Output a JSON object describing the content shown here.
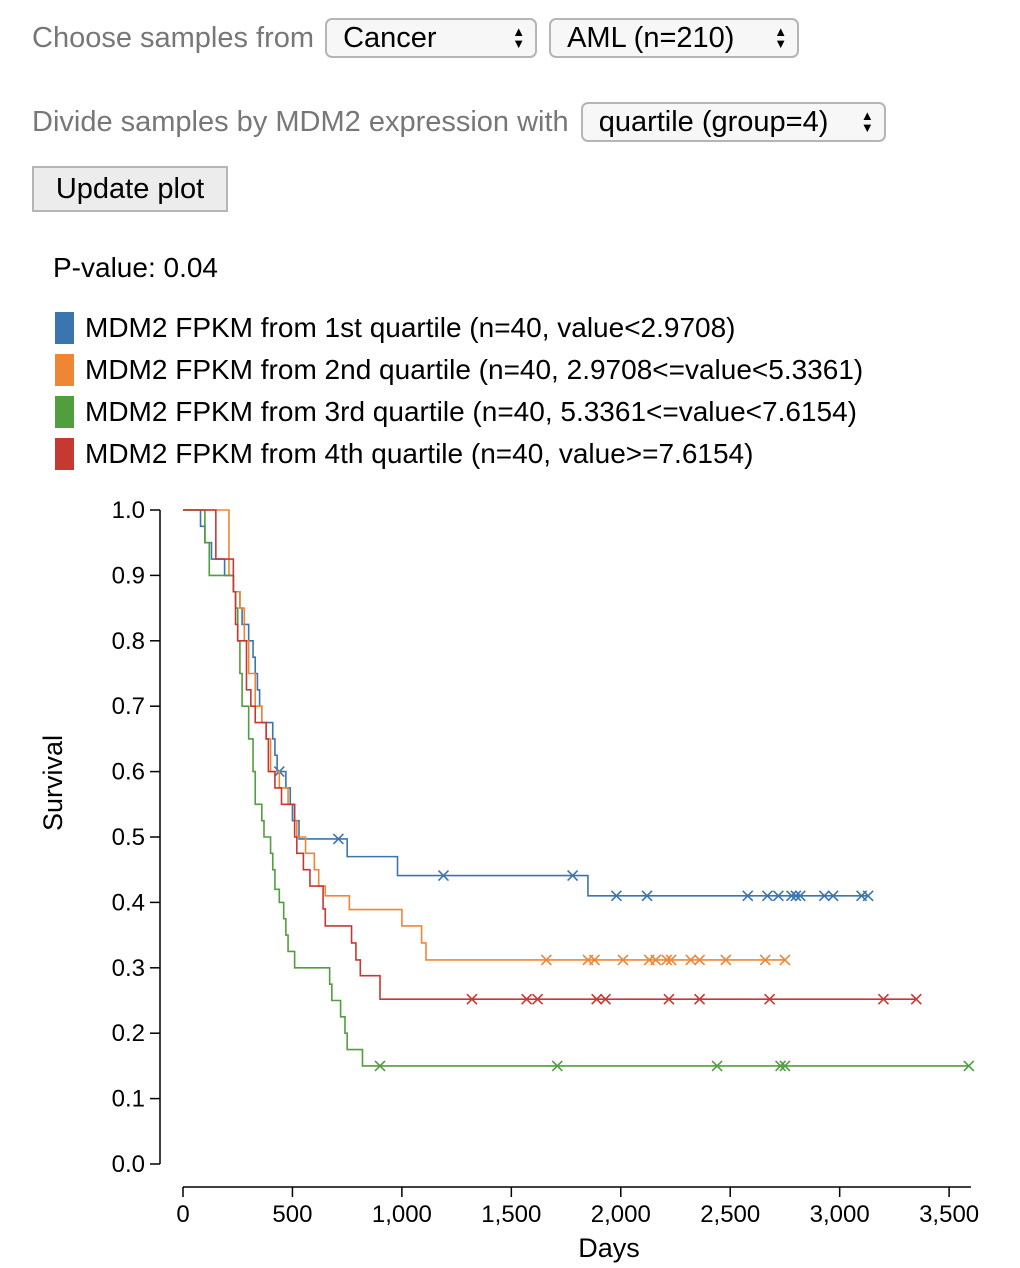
{
  "controls": {
    "choose_label": "Choose samples from",
    "choose_value": "Cancer",
    "subset_value": "AML (n=210)",
    "divide_label": "Divide samples by MDM2 expression with",
    "divide_value": "quartile (group=4)",
    "update_button": "Update plot"
  },
  "pvalue_text": "P-value: 0.04",
  "colors": {
    "q1": "#3b75af",
    "q2": "#ef8636",
    "q3": "#519e3e",
    "q4": "#c53932"
  },
  "chart_data": {
    "type": "line",
    "xlabel": "Days",
    "ylabel": "Survival",
    "xlim": [
      0,
      3600
    ],
    "ylim": [
      0,
      1.0
    ],
    "x_ticks": [
      0,
      500,
      1000,
      1500,
      2000,
      2500,
      3000,
      3500
    ],
    "x_tick_labels": [
      "0",
      "500",
      "1,000",
      "1,500",
      "2,000",
      "2,500",
      "3,000",
      "3,500"
    ],
    "y_ticks": [
      0,
      0.1,
      0.2,
      0.3,
      0.4,
      0.5,
      0.6,
      0.7,
      0.8,
      0.9,
      1.0
    ],
    "y_tick_labels": [
      "0.0",
      "0.1",
      "0.2",
      "0.3",
      "0.4",
      "0.5",
      "0.6",
      "0.7",
      "0.8",
      "0.9",
      "1.0"
    ],
    "grid": false,
    "series": [
      {
        "name": "MDM2 FPKM from 1st quartile (n=40, value<2.9708)",
        "color": "#3b75af",
        "steps": [
          [
            0,
            1.0
          ],
          [
            80,
            0.975
          ],
          [
            100,
            0.95
          ],
          [
            130,
            0.925
          ],
          [
            190,
            0.9
          ],
          [
            230,
            0.875
          ],
          [
            260,
            0.85
          ],
          [
            270,
            0.825
          ],
          [
            300,
            0.8
          ],
          [
            320,
            0.775
          ],
          [
            330,
            0.75
          ],
          [
            340,
            0.725
          ],
          [
            350,
            0.7
          ],
          [
            360,
            0.675
          ],
          [
            410,
            0.65
          ],
          [
            420,
            0.625
          ],
          [
            430,
            0.6
          ],
          [
            470,
            0.575
          ],
          [
            490,
            0.55
          ],
          [
            500,
            0.525
          ],
          [
            530,
            0.497
          ],
          [
            750,
            0.47
          ],
          [
            980,
            0.441
          ],
          [
            1850,
            0.41
          ]
        ],
        "end": 3130,
        "censored": [
          [
            440,
            0.6
          ],
          [
            710,
            0.497
          ],
          [
            1190,
            0.441
          ],
          [
            1780,
            0.441
          ],
          [
            1980,
            0.41
          ],
          [
            2120,
            0.41
          ],
          [
            2580,
            0.41
          ],
          [
            2670,
            0.41
          ],
          [
            2720,
            0.41
          ],
          [
            2780,
            0.41
          ],
          [
            2800,
            0.41
          ],
          [
            2820,
            0.41
          ],
          [
            2930,
            0.41
          ],
          [
            2970,
            0.41
          ],
          [
            3100,
            0.41
          ],
          [
            3130,
            0.41
          ]
        ]
      },
      {
        "name": "MDM2 FPKM from 2nd quartile (n=40, 2.9708<=value<5.3361)",
        "color": "#ef8636",
        "steps": [
          [
            0,
            1.0
          ],
          [
            210,
            0.9
          ],
          [
            230,
            0.875
          ],
          [
            260,
            0.85
          ],
          [
            280,
            0.8
          ],
          [
            300,
            0.75
          ],
          [
            330,
            0.7
          ],
          [
            360,
            0.675
          ],
          [
            380,
            0.65
          ],
          [
            400,
            0.6
          ],
          [
            440,
            0.575
          ],
          [
            480,
            0.55
          ],
          [
            510,
            0.525
          ],
          [
            520,
            0.5
          ],
          [
            560,
            0.475
          ],
          [
            600,
            0.45
          ],
          [
            620,
            0.425
          ],
          [
            650,
            0.41
          ],
          [
            760,
            0.389
          ],
          [
            1000,
            0.364
          ],
          [
            1090,
            0.338
          ],
          [
            1110,
            0.312
          ]
        ],
        "end": 2750,
        "censored": [
          [
            1660,
            0.312
          ],
          [
            1850,
            0.312
          ],
          [
            1880,
            0.312
          ],
          [
            2010,
            0.312
          ],
          [
            2130,
            0.312
          ],
          [
            2160,
            0.312
          ],
          [
            2210,
            0.312
          ],
          [
            2230,
            0.312
          ],
          [
            2320,
            0.312
          ],
          [
            2360,
            0.312
          ],
          [
            2480,
            0.312
          ],
          [
            2660,
            0.312
          ],
          [
            2750,
            0.312
          ]
        ]
      },
      {
        "name": "MDM2 FPKM from 3rd quartile (n=40, 5.3361<=value<7.6154)",
        "color": "#519e3e",
        "steps": [
          [
            0,
            1.0
          ],
          [
            100,
            0.95
          ],
          [
            120,
            0.9
          ],
          [
            230,
            0.875
          ],
          [
            240,
            0.85
          ],
          [
            250,
            0.8
          ],
          [
            260,
            0.75
          ],
          [
            270,
            0.7
          ],
          [
            300,
            0.65
          ],
          [
            320,
            0.6
          ],
          [
            330,
            0.55
          ],
          [
            360,
            0.525
          ],
          [
            370,
            0.5
          ],
          [
            400,
            0.475
          ],
          [
            410,
            0.45
          ],
          [
            420,
            0.42
          ],
          [
            440,
            0.4
          ],
          [
            460,
            0.375
          ],
          [
            470,
            0.35
          ],
          [
            480,
            0.325
          ],
          [
            510,
            0.3
          ],
          [
            670,
            0.275
          ],
          [
            680,
            0.25
          ],
          [
            720,
            0.225
          ],
          [
            740,
            0.2
          ],
          [
            750,
            0.175
          ],
          [
            820,
            0.15
          ]
        ],
        "end": 3590,
        "censored": [
          [
            900,
            0.15
          ],
          [
            1710,
            0.15
          ],
          [
            2440,
            0.15
          ],
          [
            2730,
            0.15
          ],
          [
            2750,
            0.15
          ],
          [
            3590,
            0.15
          ]
        ]
      },
      {
        "name": "MDM2 FPKM from 4th quartile (n=40, value>=7.6154)",
        "color": "#c53932",
        "steps": [
          [
            0,
            1.0
          ],
          [
            150,
            0.925
          ],
          [
            230,
            0.875
          ],
          [
            240,
            0.825
          ],
          [
            250,
            0.8
          ],
          [
            290,
            0.725
          ],
          [
            310,
            0.7
          ],
          [
            330,
            0.675
          ],
          [
            380,
            0.65
          ],
          [
            390,
            0.6
          ],
          [
            420,
            0.575
          ],
          [
            450,
            0.55
          ],
          [
            510,
            0.5
          ],
          [
            520,
            0.475
          ],
          [
            550,
            0.45
          ],
          [
            580,
            0.425
          ],
          [
            640,
            0.39
          ],
          [
            650,
            0.364
          ],
          [
            770,
            0.338
          ],
          [
            790,
            0.312
          ],
          [
            810,
            0.288
          ],
          [
            900,
            0.252
          ]
        ],
        "end": 3350,
        "censored": [
          [
            1320,
            0.252
          ],
          [
            1570,
            0.252
          ],
          [
            1620,
            0.252
          ],
          [
            1890,
            0.252
          ],
          [
            1930,
            0.252
          ],
          [
            2220,
            0.252
          ],
          [
            2360,
            0.252
          ],
          [
            2680,
            0.252
          ],
          [
            3200,
            0.252
          ],
          [
            3350,
            0.252
          ]
        ]
      }
    ]
  }
}
